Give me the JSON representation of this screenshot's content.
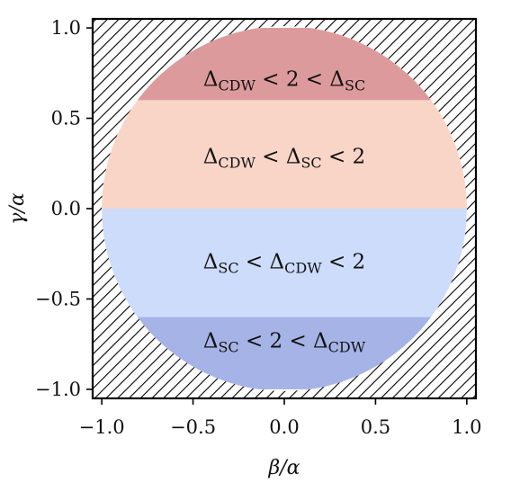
{
  "chart_data": {
    "type": "area",
    "title": "",
    "xlabel": "β/α",
    "ylabel": "γ/α",
    "xlim": [
      -1.05,
      1.05
    ],
    "ylim": [
      -1.05,
      1.05
    ],
    "grid": false,
    "legend": "none",
    "x_ticks": [
      -1.0,
      -0.5,
      0.0,
      0.5,
      1.0
    ],
    "y_ticks": [
      -1.0,
      -0.5,
      0.0,
      0.5,
      1.0
    ],
    "x_tick_labels": [
      "−1.0",
      "−0.5",
      "0.0",
      "0.5",
      "1.0"
    ],
    "y_tick_labels": [
      "−1.0",
      "−0.5",
      "0.0",
      "0.5",
      "1.0"
    ],
    "domain": {
      "shape": "disk",
      "center": [
        0,
        0
      ],
      "radius": 1.0
    },
    "excluded_region": {
      "description": "outside unit disk",
      "style": "hatched"
    },
    "regions": [
      {
        "label_main": "Δ",
        "label_parts": [
          "CDW",
          " < 2 < Δ",
          "SC"
        ],
        "y_range": [
          0.6,
          1.0
        ],
        "color": "#dd9a9c",
        "label_y": 0.72
      },
      {
        "label_main": "Δ",
        "label_parts": [
          "CDW",
          " < Δ",
          "SC",
          " < 2"
        ],
        "y_range": [
          0.0,
          0.6
        ],
        "color": "#f9d5c8",
        "label_y": 0.29
      },
      {
        "label_main": "Δ",
        "label_parts": [
          "SC",
          " < Δ",
          "CDW",
          " < 2"
        ],
        "y_range": [
          -0.6,
          0.0
        ],
        "color": "#cddcfa",
        "label_y": -0.29
      },
      {
        "label_main": "Δ",
        "label_parts": [
          "SC",
          " < 2 < Δ",
          "CDW"
        ],
        "y_range": [
          -1.0,
          -0.6
        ],
        "color": "#a6b3e6",
        "label_y": -0.73
      }
    ]
  }
}
